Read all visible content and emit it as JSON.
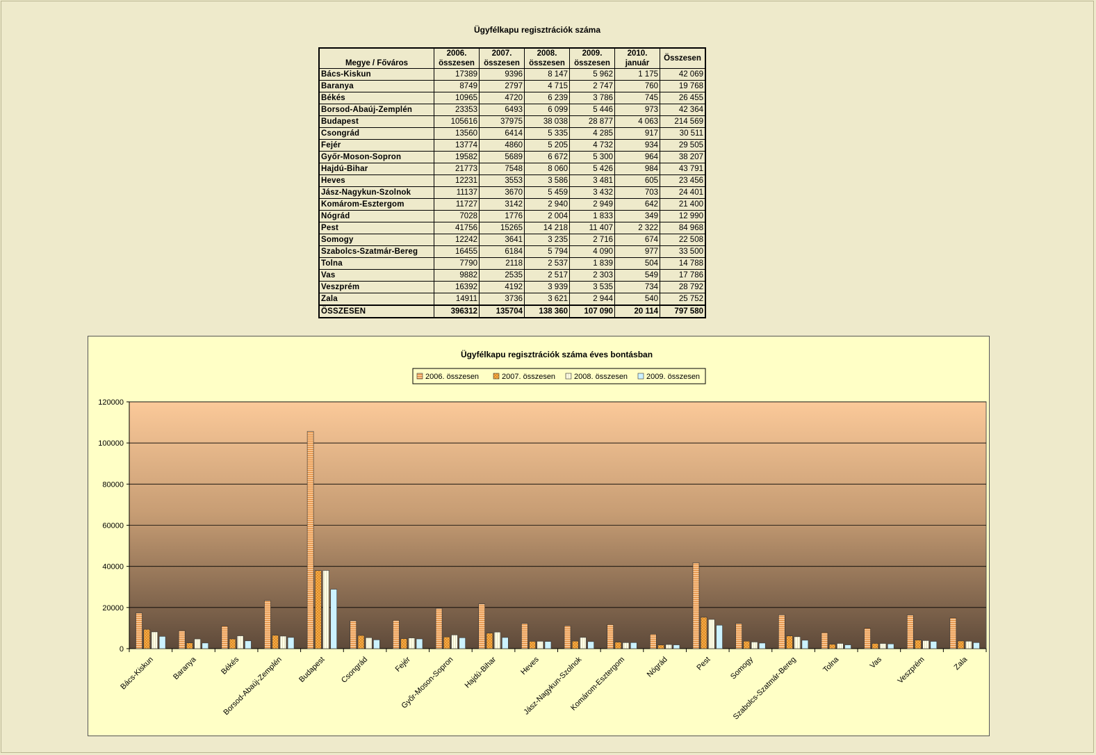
{
  "table": {
    "title": "Ügyfélkapu regisztrációk száma",
    "header_first": "Megye / Főváros",
    "columns": [
      {
        "year": "2006.",
        "sub": "összesen"
      },
      {
        "year": "2007.",
        "sub": "összesen"
      },
      {
        "year": "2008.",
        "sub": "összesen"
      },
      {
        "year": "2009.",
        "sub": "összesen"
      },
      {
        "year": "2010.",
        "sub": "január"
      },
      {
        "year": "Összesen",
        "sub": ""
      }
    ],
    "rows": [
      [
        "Bács-Kiskun",
        "17389",
        "9396",
        "8 147",
        "5 962",
        "1 175",
        "42 069"
      ],
      [
        "Baranya",
        "8749",
        "2797",
        "4 715",
        "2 747",
        "760",
        "19 768"
      ],
      [
        "Békés",
        "10965",
        "4720",
        "6 239",
        "3 786",
        "745",
        "26 455"
      ],
      [
        "Borsod-Abaúj-Zemplén",
        "23353",
        "6493",
        "6 099",
        "5 446",
        "973",
        "42 364"
      ],
      [
        "Budapest",
        "105616",
        "37975",
        "38 038",
        "28 877",
        "4 063",
        "214 569"
      ],
      [
        "Csongrád",
        "13560",
        "6414",
        "5 335",
        "4 285",
        "917",
        "30 511"
      ],
      [
        "Fejér",
        "13774",
        "4860",
        "5 205",
        "4 732",
        "934",
        "29 505"
      ],
      [
        "Győr-Moson-Sopron",
        "19582",
        "5689",
        "6 672",
        "5 300",
        "964",
        "38 207"
      ],
      [
        "Hajdú-Bihar",
        "21773",
        "7548",
        "8 060",
        "5 426",
        "984",
        "43 791"
      ],
      [
        "Heves",
        "12231",
        "3553",
        "3 586",
        "3 481",
        "605",
        "23 456"
      ],
      [
        "Jász-Nagykun-Szolnok",
        "11137",
        "3670",
        "5 459",
        "3 432",
        "703",
        "24 401"
      ],
      [
        "Komárom-Esztergom",
        "11727",
        "3142",
        "2 940",
        "2 949",
        "642",
        "21 400"
      ],
      [
        "Nógrád",
        "7028",
        "1776",
        "2 004",
        "1 833",
        "349",
        "12 990"
      ],
      [
        "Pest",
        "41756",
        "15265",
        "14 218",
        "11 407",
        "2 322",
        "84 968"
      ],
      [
        "Somogy",
        "12242",
        "3641",
        "3 235",
        "2 716",
        "674",
        "22 508"
      ],
      [
        "Szabolcs-Szatmár-Bereg",
        "16455",
        "6184",
        "5 794",
        "4 090",
        "977",
        "33 500"
      ],
      [
        "Tolna",
        "7790",
        "2118",
        "2 537",
        "1 839",
        "504",
        "14 788"
      ],
      [
        "Vas",
        "9882",
        "2535",
        "2 517",
        "2 303",
        "549",
        "17 786"
      ],
      [
        "Veszprém",
        "16392",
        "4192",
        "3 939",
        "3 535",
        "734",
        "28 792"
      ],
      [
        "Zala",
        "14911",
        "3736",
        "3 621",
        "2 944",
        "540",
        "25 752"
      ]
    ],
    "total": [
      "ÖSSZESEN",
      "396312",
      "135704",
      "138 360",
      "107 090",
      "20 114",
      "797 580"
    ]
  },
  "chart_data": {
    "type": "bar",
    "title": "Ügyfélkapu regisztrációk száma éves bontásban",
    "xlabel": "",
    "ylabel": "",
    "ylim": [
      0,
      120000
    ],
    "yticks": [
      0,
      20000,
      40000,
      60000,
      80000,
      100000,
      120000
    ],
    "grid": true,
    "legend_position": "top",
    "categories": [
      "Bács-Kiskun",
      "Baranya",
      "Békés",
      "Borsod-Abaúj-Zemplén",
      "Budapest",
      "Csongrád",
      "Fejér",
      "Győr-Moson-Sopron",
      "Hajdú-Bihar",
      "Heves",
      "Jász-Nagykun-Szolnok",
      "Komárom-Esztergom",
      "Nógrád",
      "Pest",
      "Somogy",
      "Szabolcs-Szatmár-Bereg",
      "Tolna",
      "Vas",
      "Veszprém",
      "Zala"
    ],
    "series": [
      {
        "name": "2006. összesen",
        "color": "#f5b97a",
        "pattern": "hlines",
        "values": [
          17389,
          8749,
          10965,
          23353,
          105616,
          13560,
          13774,
          19582,
          21773,
          12231,
          11137,
          11727,
          7028,
          41756,
          12242,
          16455,
          7790,
          9882,
          16392,
          14911
        ]
      },
      {
        "name": "2007. összesen",
        "color": "#f2a83c",
        "pattern": "diamonds",
        "values": [
          9396,
          2797,
          4720,
          6493,
          37975,
          6414,
          4860,
          5689,
          7548,
          3553,
          3670,
          3142,
          1776,
          15265,
          3641,
          6184,
          2118,
          2535,
          4192,
          3736
        ]
      },
      {
        "name": "2008. összesen",
        "color": "#ffffe4",
        "pattern": "vlines",
        "values": [
          8147,
          4715,
          6239,
          6099,
          38038,
          5335,
          5205,
          6672,
          8060,
          3586,
          5459,
          2940,
          2004,
          14218,
          3235,
          5794,
          2537,
          2517,
          3939,
          3621
        ]
      },
      {
        "name": "2009. összesen",
        "color": "#ccf2ff",
        "pattern": "solid",
        "values": [
          5962,
          2747,
          3786,
          5446,
          28877,
          4285,
          4732,
          5300,
          5426,
          3481,
          3432,
          2949,
          1833,
          11407,
          2716,
          4090,
          1839,
          2303,
          3535,
          2944
        ]
      }
    ]
  }
}
